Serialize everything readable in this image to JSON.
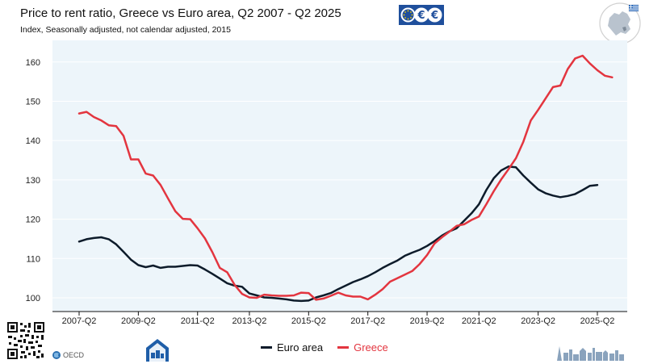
{
  "header": {
    "title": "Price to rent ratio, Greece vs Euro area, Q2 2007 - Q2 2025",
    "subtitle": "Index, Seasonally adjusted, not calendar adjusted, 2015"
  },
  "footer": {
    "oecd_label": "OECD"
  },
  "colors": {
    "euro_area": "#0d1b2a",
    "greece": "#e3353f",
    "plot_bg": "#edf5fa",
    "grid": "#ffffff",
    "ecb_blue": "#1f4f9c"
  },
  "chart_data": {
    "type": "line",
    "title": "Price to rent ratio, Greece vs Euro area, Q2 2007 - Q2 2025",
    "subtitle": "Index, Seasonally adjusted, not calendar adjusted, 2015",
    "xlabel": "",
    "ylabel": "",
    "ylim": [
      96.5,
      165.5
    ],
    "yticks": [
      100,
      110,
      120,
      130,
      140,
      150,
      160
    ],
    "xtick_labels": [
      "2007-Q2",
      "2009-Q2",
      "2011-Q2",
      "2013-Q2",
      "2015-Q2",
      "2017-Q2",
      "2019-Q2",
      "2021-Q2",
      "2023-Q2",
      "2025-Q2"
    ],
    "grid": true,
    "legend_position": "bottom-center",
    "x_start": "2007-Q2",
    "x_end": "2025-Q2",
    "series": [
      {
        "name": "Euro area",
        "values": [
          114.3,
          114.9,
          115.2,
          115.4,
          114.9,
          113.6,
          111.7,
          109.7,
          108.3,
          107.8,
          108.2,
          107.6,
          107.9,
          107.9,
          108.1,
          108.3,
          108.2,
          107.2,
          106.1,
          104.9,
          103.7,
          103.1,
          102.8,
          101.1,
          100.6,
          100.1,
          100.0,
          99.8,
          99.6,
          99.3,
          99.2,
          99.3,
          100.1,
          100.6,
          101.2,
          102.2,
          103.1,
          104.0,
          104.7,
          105.5,
          106.5,
          107.6,
          108.6,
          109.5,
          110.7,
          111.5,
          112.2,
          113.2,
          114.4,
          115.8,
          116.9,
          117.7,
          119.6,
          121.5,
          123.8,
          127.4,
          130.4,
          132.4,
          133.4,
          133.2,
          131.1,
          129.3,
          127.6,
          126.6,
          126.0,
          125.6,
          125.9,
          126.4,
          127.4,
          128.5,
          128.7
        ]
      },
      {
        "name": "Greece",
        "values": [
          146.9,
          147.3,
          146.0,
          145.1,
          143.9,
          143.7,
          141.2,
          135.2,
          135.2,
          131.6,
          131.1,
          128.7,
          125.3,
          122.0,
          120.1,
          120.0,
          117.7,
          115.1,
          111.6,
          107.6,
          106.5,
          103.3,
          101.0,
          100.1,
          100.0,
          100.8,
          100.6,
          100.5,
          100.5,
          100.6,
          101.3,
          101.2,
          99.5,
          99.8,
          100.5,
          101.3,
          100.6,
          100.3,
          100.3,
          99.6,
          100.8,
          102.2,
          104.1,
          105.0,
          105.9,
          106.8,
          108.6,
          110.9,
          113.8,
          115.4,
          116.8,
          118.3,
          118.7,
          119.8,
          120.7,
          123.8,
          127.1,
          130.1,
          132.7,
          135.5,
          139.7,
          145.1,
          147.8,
          150.7,
          153.6,
          154.0,
          158.2,
          160.9,
          161.6,
          159.6,
          157.9,
          156.5,
          156.1
        ]
      }
    ]
  }
}
